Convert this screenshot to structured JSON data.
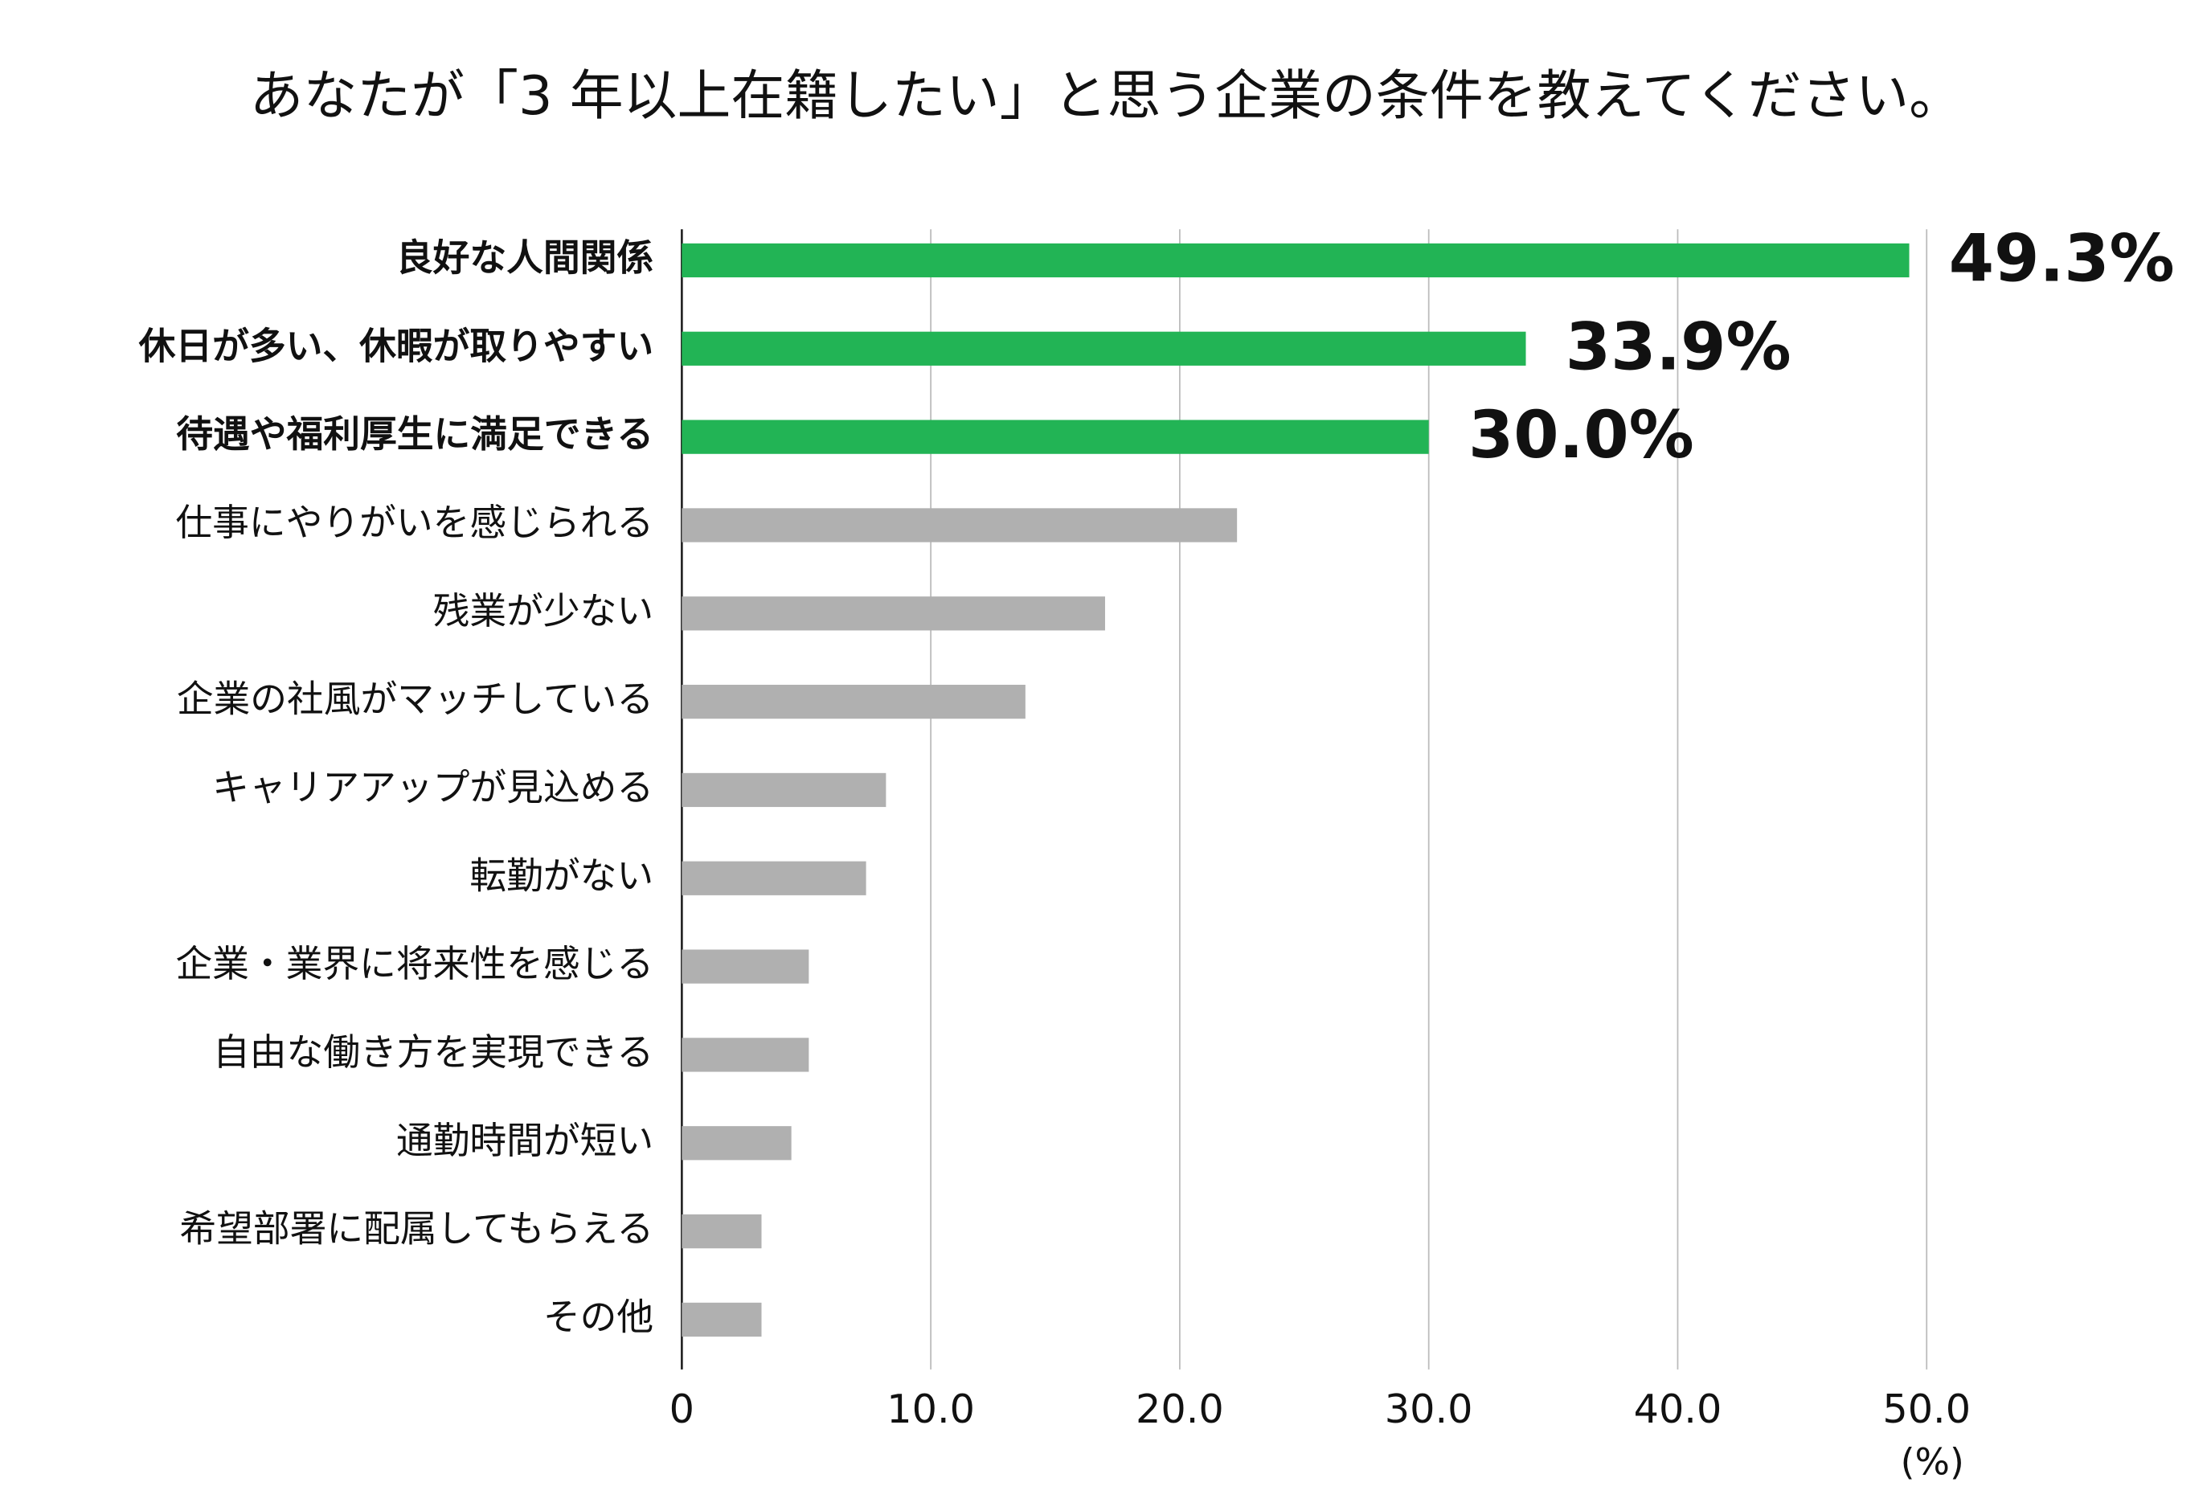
{
  "chart_data": {
    "type": "barh",
    "title": "あなたが「3 年以上在籍したい」と思う企業の条件を教えてください。",
    "categories": [
      "良好な人間関係",
      "休日が多い、休暇が取りやすい",
      "待遇や福利厚生に満足できる",
      "仕事にやりがいを感じられる",
      "残業が少ない",
      "企業の社風がマッチしている",
      "キャリアアップが見込める",
      "転勤がない",
      "企業・業界に将来性を感じる",
      "自由な働き方を実現できる",
      "通勤時間が短い",
      "希望部署に配属してもらえる",
      "その他"
    ],
    "values": [
      49.3,
      33.9,
      30.0,
      22.3,
      17.0,
      13.8,
      8.2,
      7.4,
      5.1,
      5.1,
      4.4,
      3.2,
      3.2
    ],
    "value_labels": [
      "49.3%",
      "33.9%",
      "30.0%",
      null,
      null,
      null,
      null,
      null,
      null,
      null,
      null,
      null,
      null
    ],
    "colors": [
      "#22b455",
      "#22b455",
      "#22b455",
      "#b0b0b0",
      "#b0b0b0",
      "#b0b0b0",
      "#b0b0b0",
      "#b0b0b0",
      "#b0b0b0",
      "#b0b0b0",
      "#b0b0b0",
      "#b0b0b0",
      "#b0b0b0"
    ],
    "xlim": [
      0,
      50
    ],
    "xticks": [
      0,
      {
        "value": 10,
        "label": "10.0"
      },
      {
        "value": 20,
        "label": "20.0"
      },
      {
        "value": 30,
        "label": "30.0"
      },
      {
        "value": 40,
        "label": "40.0"
      },
      {
        "value": 50,
        "label": "50.0"
      }
    ],
    "xlabel": "(%)",
    "grid": true
  }
}
